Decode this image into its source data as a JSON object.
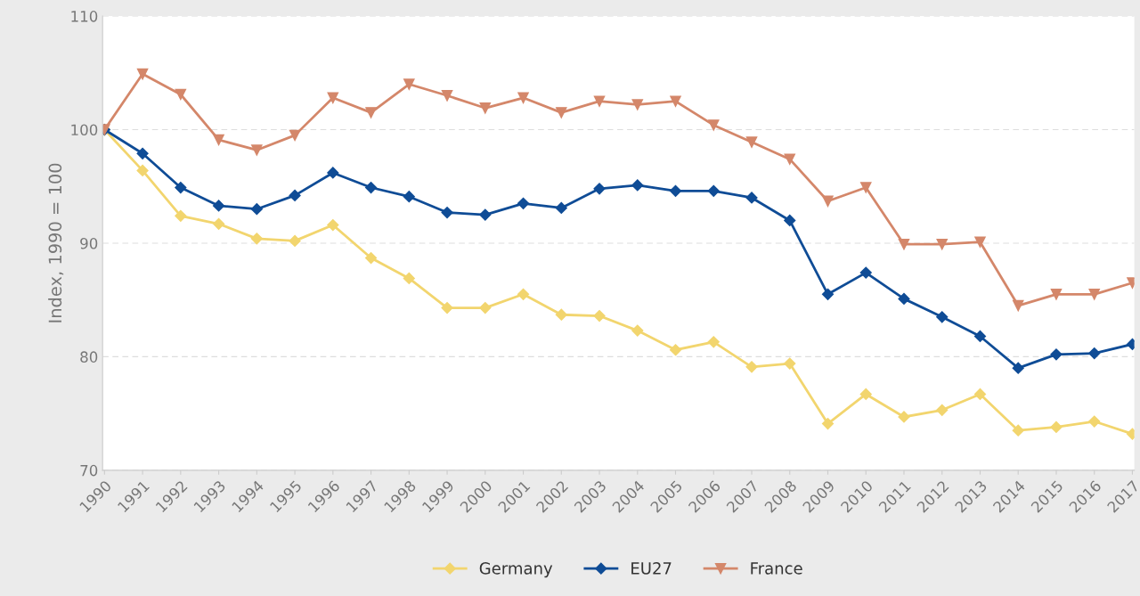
{
  "chart_data": {
    "type": "line",
    "ylabel": "Index, 1990 = 100",
    "categories": [
      "1990",
      "1991",
      "1992",
      "1993",
      "1994",
      "1995",
      "1996",
      "1997",
      "1998",
      "1999",
      "2000",
      "2001",
      "2002",
      "2003",
      "2004",
      "2005",
      "2006",
      "2007",
      "2008",
      "2009",
      "2010",
      "2011",
      "2012",
      "2013",
      "2014",
      "2015",
      "2016",
      "2017"
    ],
    "series": [
      {
        "name": "Germany",
        "color": "#f2d56e",
        "marker": "diamond",
        "values": [
          100,
          96.4,
          92.4,
          91.7,
          90.4,
          90.2,
          91.6,
          88.7,
          86.9,
          84.3,
          84.3,
          85.5,
          83.7,
          83.6,
          82.3,
          80.6,
          81.3,
          79.1,
          79.4,
          74.1,
          76.7,
          74.7,
          75.3,
          76.7,
          73.5,
          73.8,
          74.3,
          73.2
        ]
      },
      {
        "name": "EU27",
        "color": "#0f4c96",
        "marker": "diamond",
        "values": [
          100,
          97.9,
          94.9,
          93.3,
          93.0,
          94.2,
          96.2,
          94.9,
          94.1,
          92.7,
          92.5,
          93.5,
          93.1,
          94.8,
          95.1,
          94.6,
          94.6,
          94.0,
          92.0,
          85.5,
          87.4,
          85.1,
          83.5,
          81.8,
          79.0,
          80.2,
          80.3,
          81.1
        ]
      },
      {
        "name": "France",
        "color": "#d4876a",
        "marker": "triangle",
        "values": [
          100,
          104.9,
          103.1,
          99.1,
          98.2,
          99.5,
          102.8,
          101.5,
          104.0,
          103.0,
          101.9,
          102.8,
          101.5,
          102.5,
          102.2,
          102.5,
          100.4,
          98.9,
          97.4,
          93.7,
          94.9,
          89.9,
          89.9,
          90.1,
          84.5,
          85.5,
          85.5,
          86.5
        ]
      }
    ],
    "ylim": [
      70,
      110
    ],
    "yticks": [
      70,
      80,
      90,
      100,
      110
    ],
    "grid": "y",
    "legend": "bottom",
    "line_style": "solid"
  }
}
